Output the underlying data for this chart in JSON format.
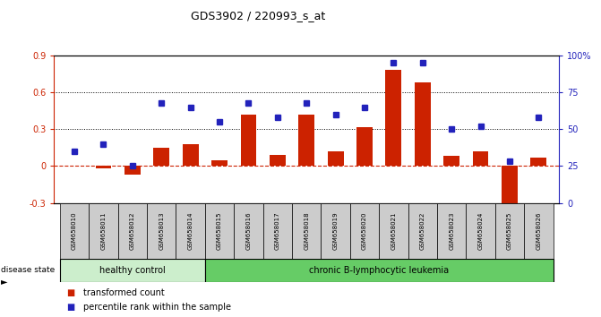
{
  "title": "GDS3902 / 220993_s_at",
  "samples": [
    "GSM658010",
    "GSM658011",
    "GSM658012",
    "GSM658013",
    "GSM658014",
    "GSM658015",
    "GSM658016",
    "GSM658017",
    "GSM658018",
    "GSM658019",
    "GSM658020",
    "GSM658021",
    "GSM658022",
    "GSM658023",
    "GSM658024",
    "GSM658025",
    "GSM658026"
  ],
  "transformed_count": [
    0.0,
    -0.02,
    -0.07,
    0.15,
    0.18,
    0.05,
    0.42,
    0.09,
    0.42,
    0.12,
    0.32,
    0.78,
    0.68,
    0.08,
    0.12,
    -0.38,
    0.07
  ],
  "percentile_rank": [
    35,
    40,
    25,
    68,
    65,
    55,
    68,
    58,
    68,
    60,
    65,
    95,
    95,
    50,
    52,
    28,
    58
  ],
  "healthy_control_count": 5,
  "ylim_left": [
    -0.3,
    0.9
  ],
  "ylim_right": [
    0,
    100
  ],
  "yticks_left": [
    -0.3,
    0.0,
    0.3,
    0.6,
    0.9
  ],
  "ytick_labels_left": [
    "-0.3",
    "0",
    "0.3",
    "0.6",
    "0.9"
  ],
  "yticks_right": [
    0,
    25,
    50,
    75,
    100
  ],
  "ytick_labels_right": [
    "0",
    "25",
    "50",
    "75",
    "100%"
  ],
  "bar_color": "#cc2200",
  "dot_color": "#2222bb",
  "healthy_bg": "#cceecc",
  "leukemia_bg": "#66cc66",
  "label_bg": "#cccccc",
  "dashed_zero_color": "#cc2200",
  "healthy_label": "healthy control",
  "leukemia_label": "chronic B-lymphocytic leukemia",
  "disease_state_label": "disease state",
  "legend_bar_label": "transformed count",
  "legend_dot_label": "percentile rank within the sample"
}
